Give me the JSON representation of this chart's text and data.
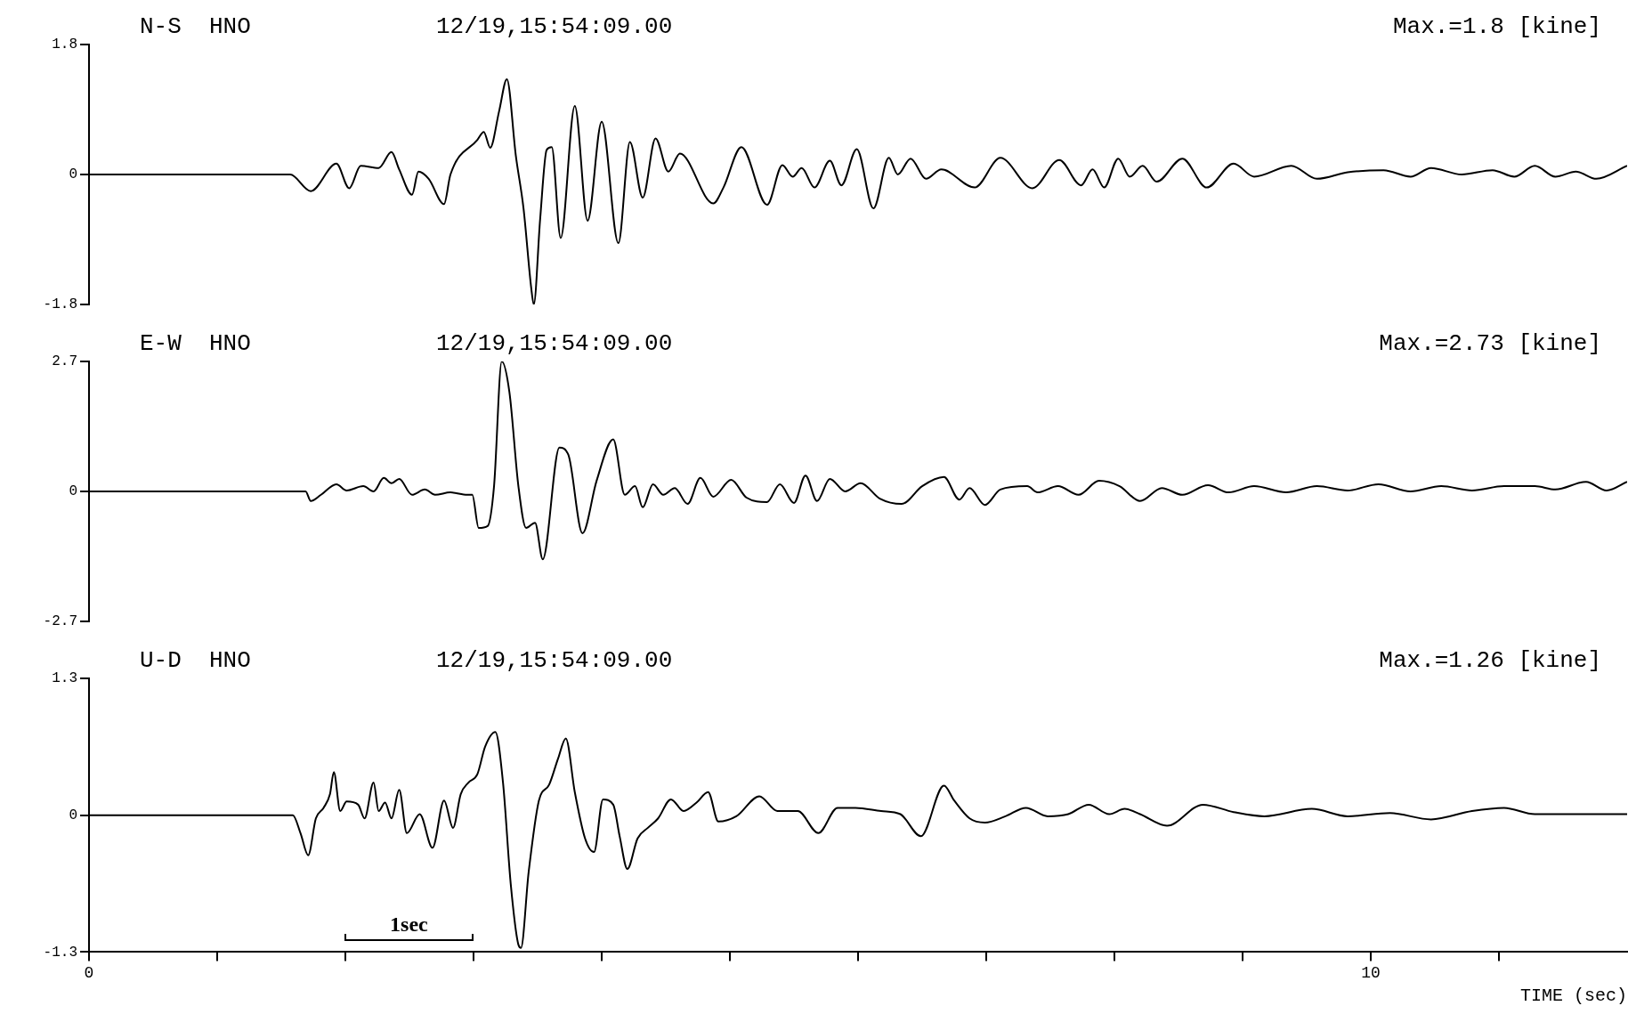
{
  "chart_data": [
    {
      "type": "line",
      "title": "N-S  HNO",
      "subtitle": "12/19,15:54:09.00",
      "annotations": [
        "Max.=1.8 [kine]"
      ],
      "xlim": [
        0,
        12
      ],
      "ylim": [
        -1.8,
        1.8
      ],
      "yticks": [
        -1.8,
        0,
        1.8
      ],
      "tick_labels": "y",
      "grid": false,
      "legend": false,
      "marker": "none",
      "line_style": "solid",
      "series": [
        {
          "color": "#000000",
          "x": [
            0,
            1.57,
            1.73,
            1.93,
            2.03,
            2.12,
            2.26,
            2.36,
            2.42,
            2.52,
            2.57,
            2.65,
            2.77,
            2.82,
            3.03,
            3.08,
            3.13,
            3.2,
            3.26,
            3.33,
            3.39,
            3.45,
            3.47,
            3.52,
            3.57,
            3.61,
            3.68,
            3.79,
            3.89,
            4.0,
            4.13,
            4.22,
            4.32,
            4.42,
            4.52,
            4.61,
            4.87,
            4.95,
            5.09,
            5.29,
            5.41,
            5.49,
            5.56,
            5.66,
            5.78,
            5.87,
            5.99,
            6.12,
            6.24,
            6.31,
            6.41,
            6.53,
            6.65,
            6.91,
            7.11,
            7.36,
            7.57,
            7.74,
            7.83,
            7.92,
            8.03,
            8.12,
            8.22,
            8.33,
            8.53,
            8.72,
            8.93,
            9.09,
            9.38,
            9.58,
            9.82,
            10.1,
            10.31,
            10.47,
            10.71,
            10.95,
            11.12,
            11.28,
            11.44,
            11.6,
            11.76,
            12.0
          ],
          "values": [
            0,
            0,
            -0.23,
            0.15,
            -0.19,
            0.12,
            0.09,
            0.31,
            0.07,
            -0.28,
            0.04,
            -0.06,
            -0.41,
            0,
            0.48,
            0.59,
            0.37,
            0.88,
            1.32,
            0.26,
            -0.47,
            -1.57,
            -1.8,
            -0.61,
            0.34,
            0.38,
            -0.88,
            0.95,
            -0.64,
            0.73,
            -0.95,
            0.45,
            -0.32,
            0.5,
            0.04,
            0.29,
            -0.4,
            -0.18,
            0.38,
            -0.42,
            0.13,
            -0.03,
            0.09,
            -0.18,
            0.19,
            -0.15,
            0.35,
            -0.47,
            0.23,
            0,
            0.22,
            -0.06,
            0.07,
            -0.18,
            0.23,
            -0.19,
            0.2,
            -0.15,
            0.07,
            -0.18,
            0.22,
            -0.03,
            0.12,
            -0.1,
            0.22,
            -0.18,
            0.15,
            -0.03,
            0.12,
            -0.06,
            0.03,
            0.06,
            -0.03,
            0.09,
            0,
            0.06,
            -0.03,
            0.12,
            -0.03,
            0.04,
            -0.06,
            0.12
          ]
        }
      ]
    },
    {
      "type": "line",
      "title": "E-W  HNO",
      "subtitle": "12/19,15:54:09.00",
      "annotations": [
        "Max.=2.73 [kine]"
      ],
      "xlim": [
        0,
        12
      ],
      "ylim": [
        -2.7,
        2.7
      ],
      "yticks": [
        -2.7,
        0,
        2.7
      ],
      "tick_labels": "y",
      "grid": false,
      "legend": false,
      "marker": "none",
      "line_style": "solid",
      "series": [
        {
          "color": "#000000",
          "x": [
            0,
            1.69,
            1.73,
            1.81,
            1.93,
            2.01,
            2.14,
            2.22,
            2.3,
            2.36,
            2.42,
            2.52,
            2.62,
            2.7,
            2.82,
            2.95,
            2.99,
            3.04,
            3.11,
            3.16,
            3.22,
            3.28,
            3.35,
            3.41,
            3.48,
            3.54,
            3.67,
            3.74,
            3.85,
            3.96,
            4.09,
            4.18,
            4.26,
            4.32,
            4.4,
            4.48,
            4.57,
            4.67,
            4.77,
            4.87,
            5.01,
            5.13,
            5.29,
            5.39,
            5.5,
            5.59,
            5.68,
            5.78,
            5.9,
            6.02,
            6.17,
            6.34,
            6.5,
            6.67,
            6.79,
            6.87,
            6.99,
            7.11,
            7.32,
            7.4,
            7.56,
            7.72,
            7.88,
            8.04,
            8.2,
            8.37,
            8.53,
            8.73,
            8.89,
            9.09,
            9.34,
            9.58,
            9.82,
            10.06,
            10.31,
            10.55,
            10.79,
            11.04,
            11.28,
            11.44,
            11.68,
            11.84,
            12.0
          ],
          "values": [
            0,
            0,
            -0.2,
            -0.07,
            0.15,
            0.02,
            0.11,
            0,
            0.28,
            0.17,
            0.26,
            -0.07,
            0.04,
            -0.07,
            -0.02,
            -0.07,
            -0.07,
            -0.76,
            -0.72,
            0.11,
            2.7,
            2.06,
            0.11,
            -0.76,
            -0.65,
            -1.41,
            0.91,
            0.76,
            -0.87,
            0.22,
            1.08,
            -0.07,
            0.11,
            -0.33,
            0.15,
            -0.07,
            0.07,
            -0.26,
            0.28,
            -0.11,
            0.24,
            -0.13,
            -0.22,
            0.15,
            -0.24,
            0.33,
            -0.2,
            0.26,
            0,
            0.17,
            -0.15,
            -0.26,
            0.11,
            0.3,
            -0.17,
            0.07,
            -0.28,
            0.04,
            0.11,
            -0.02,
            0.11,
            -0.07,
            0.22,
            0.11,
            -0.2,
            0.07,
            -0.07,
            0.13,
            -0.02,
            0.11,
            -0.02,
            0.11,
            0.02,
            0.15,
            0,
            0.11,
            0.02,
            0.11,
            0.11,
            0.04,
            0.2,
            0.02,
            0.2
          ]
        }
      ]
    },
    {
      "type": "line",
      "title": "U-D  HNO",
      "subtitle": "12/19,15:54:09.00",
      "xlabel": "TIME (sec)",
      "annotations": [
        "Max.=1.26 [kine]",
        "1sec"
      ],
      "xlim": [
        0,
        12
      ],
      "xticks": [
        0,
        {
          "value": 1,
          "label": null
        },
        {
          "value": 2,
          "label": null
        },
        {
          "value": 3,
          "label": null
        },
        {
          "value": 4,
          "label": null
        },
        {
          "value": 5,
          "label": null
        },
        {
          "value": 6,
          "label": null
        },
        {
          "value": 7,
          "label": null
        },
        {
          "value": 8,
          "label": null
        },
        {
          "value": 9,
          "label": null
        },
        10,
        {
          "value": 11,
          "label": null
        }
      ],
      "ylim": [
        -1.3,
        1.3
      ],
      "yticks": [
        -1.3,
        0,
        1.3
      ],
      "grid": false,
      "legend": false,
      "marker": "none",
      "line_style": "solid",
      "series": [
        {
          "color": "#000000",
          "x": [
            0,
            1.59,
            1.65,
            1.71,
            1.77,
            1.83,
            1.88,
            1.91,
            1.96,
            2.01,
            2.1,
            2.15,
            2.22,
            2.26,
            2.31,
            2.36,
            2.42,
            2.48,
            2.58,
            2.68,
            2.77,
            2.84,
            2.9,
            2.96,
            3.03,
            3.09,
            3.17,
            3.23,
            3.29,
            3.35,
            3.37,
            3.43,
            3.51,
            3.59,
            3.66,
            3.72,
            3.79,
            3.87,
            3.94,
            4.01,
            4.09,
            4.14,
            4.2,
            4.28,
            4.36,
            4.44,
            4.54,
            4.64,
            4.74,
            4.83,
            4.91,
            5.05,
            5.23,
            5.37,
            5.53,
            5.69,
            5.84,
            5.98,
            6.18,
            6.33,
            6.49,
            6.67,
            6.75,
            6.87,
            6.99,
            7.15,
            7.31,
            7.48,
            7.64,
            7.8,
            7.96,
            8.08,
            8.2,
            8.41,
            8.69,
            8.93,
            9.17,
            9.54,
            9.82,
            10.15,
            10.47,
            10.79,
            11.04,
            11.28,
            11.6,
            12.0
          ],
          "values": [
            0,
            0,
            -0.17,
            -0.38,
            -0.03,
            0.07,
            0.2,
            0.41,
            0.04,
            0.13,
            0.1,
            -0.03,
            0.31,
            0.04,
            0.12,
            -0.03,
            0.24,
            -0.17,
            0.01,
            -0.31,
            0.14,
            -0.12,
            0.2,
            0.31,
            0.39,
            0.65,
            0.79,
            0.31,
            -0.65,
            -1.23,
            -1.26,
            -0.54,
            0.14,
            0.29,
            0.54,
            0.73,
            0.22,
            -0.22,
            -0.35,
            0.15,
            0.1,
            -0.2,
            -0.51,
            -0.22,
            -0.12,
            -0.03,
            0.15,
            0.04,
            0.12,
            0.22,
            -0.06,
            -0.01,
            0.18,
            0.04,
            0.04,
            -0.17,
            0.07,
            0.07,
            0.04,
            0.01,
            -0.2,
            0.28,
            0.14,
            -0.03,
            -0.07,
            -0.01,
            0.07,
            -0.01,
            0.01,
            0.1,
            0.01,
            0.06,
            0.01,
            -0.1,
            0.1,
            0.03,
            -0.01,
            0.06,
            -0.01,
            0.02,
            -0.04,
            0.04,
            0.07,
            0.01,
            0.01,
            0.01
          ]
        }
      ]
    }
  ]
}
